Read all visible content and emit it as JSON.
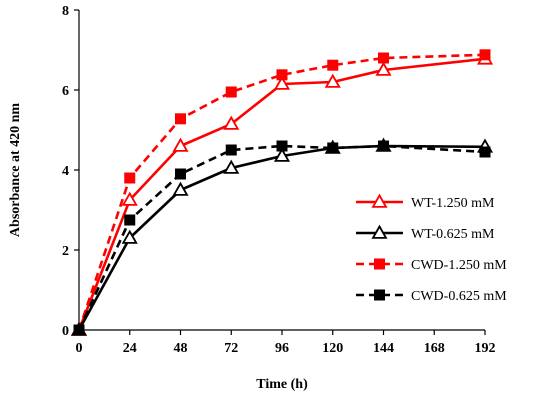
{
  "chart_data": {
    "type": "line",
    "xlabel": "Time (h)",
    "ylabel": "Absorbance at 420 nm",
    "xlim": [
      0,
      192
    ],
    "ylim": [
      0,
      8
    ],
    "xticks": [
      0,
      24,
      48,
      72,
      96,
      120,
      144,
      168,
      192
    ],
    "yticks": [
      0,
      2,
      4,
      6,
      8
    ],
    "grid": false,
    "legend_position": "right",
    "x": [
      0,
      24,
      48,
      72,
      96,
      120,
      144,
      192
    ],
    "series": [
      {
        "name": "WT-1.250 mM",
        "values": [
          0,
          3.25,
          4.6,
          5.15,
          6.15,
          6.2,
          6.5,
          6.78
        ],
        "color": "#ff0000",
        "dash": "solid",
        "marker": "open-triangle"
      },
      {
        "name": "WT-0.625 mM",
        "values": [
          0,
          2.3,
          3.5,
          4.05,
          4.35,
          4.55,
          4.6,
          4.58
        ],
        "color": "#000000",
        "dash": "solid",
        "marker": "open-triangle"
      },
      {
        "name": "CWD-1.250 mM",
        "values": [
          0,
          3.8,
          5.28,
          5.95,
          6.38,
          6.62,
          6.8,
          6.88
        ],
        "color": "#ff0000",
        "dash": "dashed",
        "marker": "filled-square"
      },
      {
        "name": "CWD-0.625 mM",
        "values": [
          0,
          2.75,
          3.9,
          4.5,
          4.6,
          4.55,
          4.6,
          4.45
        ],
        "color": "#000000",
        "dash": "dashed",
        "marker": "filled-square"
      }
    ]
  }
}
